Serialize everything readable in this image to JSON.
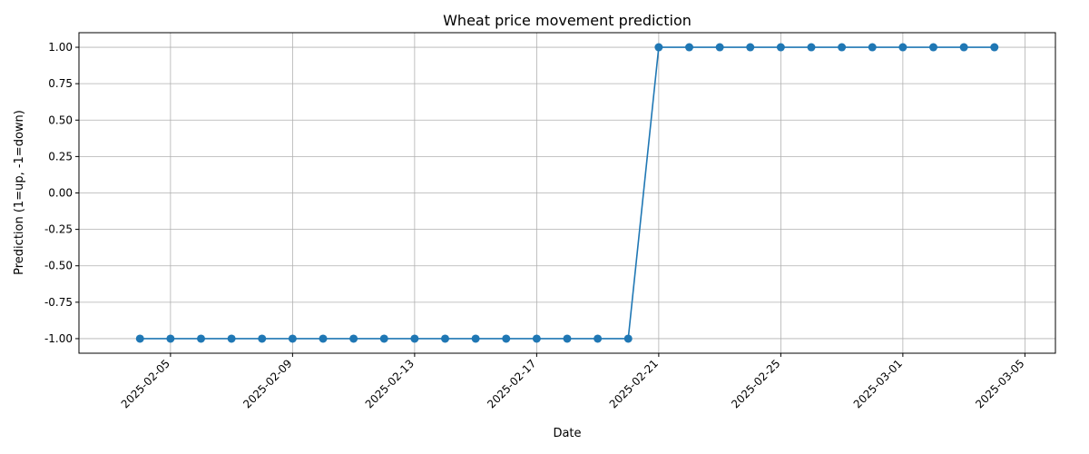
{
  "chart_data": {
    "type": "line",
    "title": "Wheat price movement prediction",
    "xlabel": "Date",
    "ylabel": "Prediction (1=up, -1=down)",
    "x": [
      "2025-02-04",
      "2025-02-05",
      "2025-02-06",
      "2025-02-07",
      "2025-02-08",
      "2025-02-09",
      "2025-02-10",
      "2025-02-11",
      "2025-02-12",
      "2025-02-13",
      "2025-02-14",
      "2025-02-15",
      "2025-02-16",
      "2025-02-17",
      "2025-02-18",
      "2025-02-19",
      "2025-02-20",
      "2025-02-21",
      "2025-02-22",
      "2025-02-23",
      "2025-02-24",
      "2025-02-25",
      "2025-02-26",
      "2025-02-27",
      "2025-02-28",
      "2025-03-01",
      "2025-03-02",
      "2025-03-03",
      "2025-03-04"
    ],
    "series": [
      {
        "values": [
          -1,
          -1,
          -1,
          -1,
          -1,
          -1,
          -1,
          -1,
          -1,
          -1,
          -1,
          -1,
          -1,
          -1,
          -1,
          -1,
          -1,
          1,
          1,
          1,
          1,
          1,
          1,
          1,
          1,
          1,
          1,
          1,
          1
        ],
        "color": "#1f77b4",
        "marker": "circle"
      }
    ],
    "xticks": [
      "2025-02-05",
      "2025-02-09",
      "2025-02-13",
      "2025-02-17",
      "2025-02-21",
      "2025-02-25",
      "2025-03-01",
      "2025-03-05"
    ],
    "yticks": [
      "-1.00",
      "-0.75",
      "-0.50",
      "-0.25",
      "0.00",
      "0.25",
      "0.50",
      "0.75",
      "1.00"
    ],
    "xlim": [
      "2025-02-02",
      "2025-03-06"
    ],
    "ylim": [
      -1.1,
      1.1
    ],
    "grid": true,
    "legend": "none"
  }
}
